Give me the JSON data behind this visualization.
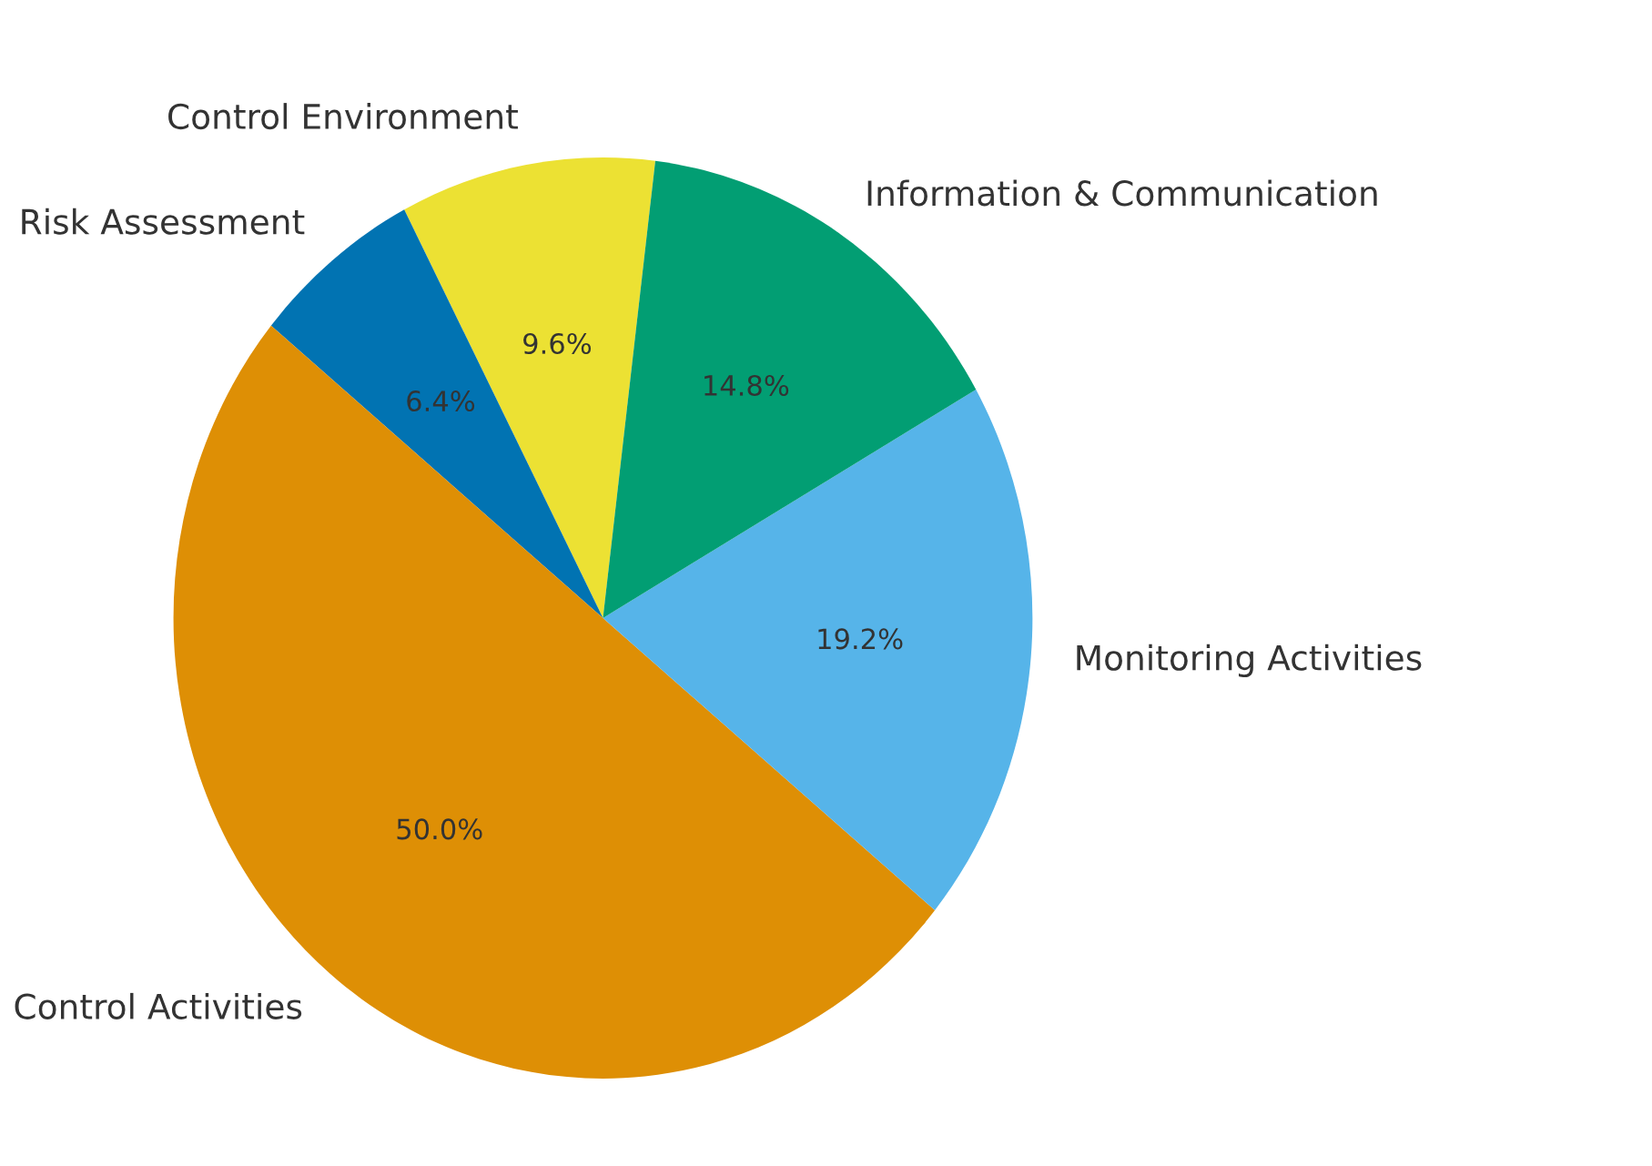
{
  "chart_data": {
    "type": "pie",
    "categories": [
      "Control Environment",
      "Risk Assessment",
      "Control Activities",
      "Monitoring Activities",
      "Information & Communication"
    ],
    "values": [
      9.6,
      6.4,
      50.0,
      19.2,
      14.8
    ],
    "value_labels": [
      "9.6%",
      "6.4%",
      "50.0%",
      "19.2%",
      "14.8%"
    ],
    "colors": [
      "#ece133",
      "#0173b2",
      "#de8f05",
      "#56b4e9",
      "#029e73"
    ]
  }
}
